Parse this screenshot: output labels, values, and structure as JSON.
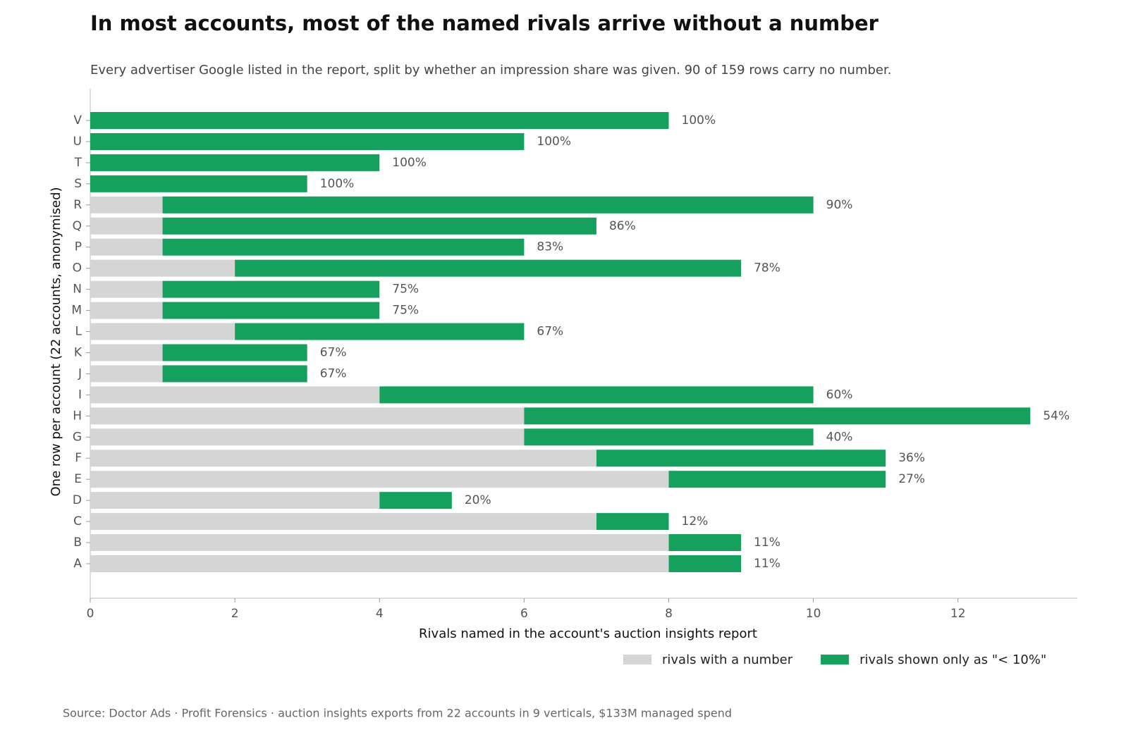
{
  "chart_data": {
    "type": "stacked_barh",
    "title": "In most accounts, most of the named rivals arrive without a number",
    "subtitle": "Every advertiser Google listed in the report, split by whether an impression share was given. 90 of 159 rows carry no number.",
    "x_label": "Rivals named in the account's auction insights report",
    "y_label": "One row per account (22 accounts, anonymised)",
    "source": "Source: Doctor Ads · Profit Forensics · auction insights exports from 22 accounts in 9 verticals, $133M managed spend",
    "categories": [
      "A",
      "B",
      "C",
      "D",
      "E",
      "F",
      "G",
      "H",
      "I",
      "J",
      "K",
      "L",
      "M",
      "N",
      "O",
      "P",
      "Q",
      "R",
      "S",
      "T",
      "U",
      "V"
    ],
    "series": [
      {
        "name": "rivals with a number",
        "color": "#d5d5d5",
        "values": [
          8,
          8,
          7,
          4,
          8,
          7,
          6,
          6,
          4,
          1,
          1,
          2,
          1,
          1,
          2,
          1,
          1,
          1,
          0,
          0,
          0,
          0
        ]
      },
      {
        "name": "rivals shown only as \"< 10%\"",
        "color": "#16a05d",
        "values": [
          1,
          1,
          1,
          1,
          3,
          4,
          4,
          7,
          6,
          2,
          2,
          4,
          3,
          3,
          7,
          5,
          6,
          9,
          3,
          4,
          6,
          8
        ]
      }
    ],
    "share_labels": {
      "values": [
        11,
        11,
        12,
        20,
        27,
        36,
        40,
        54,
        60,
        67,
        67,
        67,
        75,
        75,
        78,
        83,
        86,
        90,
        100,
        100,
        100,
        100
      ],
      "value_labels": [
        "11%",
        "11%",
        "12%",
        "20%",
        "27%",
        "36%",
        "40%",
        "54%",
        "60%",
        "67%",
        "67%",
        "67%",
        "75%",
        "75%",
        "78%",
        "83%",
        "86%",
        "90%",
        "100%",
        "100%",
        "100%",
        "100%"
      ]
    },
    "xlim": [
      0,
      13.65
    ],
    "xticks": [
      0,
      2,
      4,
      6,
      8,
      10,
      12
    ],
    "legend": "lower right"
  }
}
